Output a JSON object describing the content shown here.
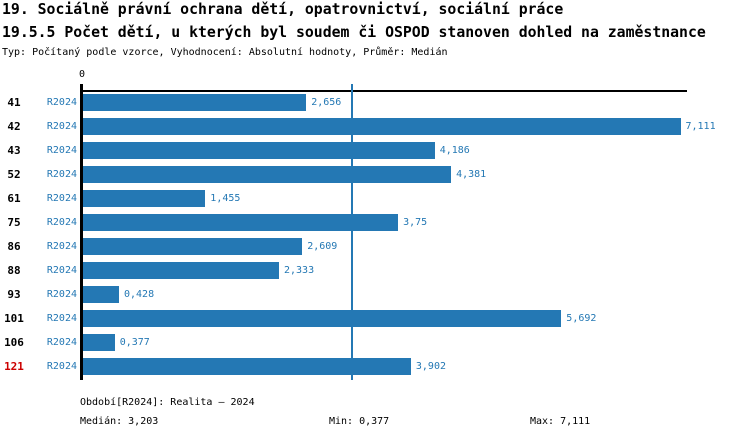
{
  "header": {
    "title": "19. Sociálně právní ochrana dětí, opatrovnictví, sociální práce",
    "subtitle": "19.5.5 Počet dětí, u kterých byl soudem či OSPOD stanoven dohled na zaměstnance",
    "meta": "Typ: Počítaný podle vzorce, Vyhodnocení: Absolutní hodnoty, Průměr: Medián"
  },
  "chart_data": {
    "type": "bar",
    "orientation": "horizontal",
    "title": "19.5.5 Počet dětí, u kterých byl soudem či OSPOD stanoven dohled na zaměstnance",
    "x_axis_zero_label": "0",
    "xlim": [
      0,
      7.2
    ],
    "grid": false,
    "legend": false,
    "series_label": "R2024",
    "categories": [
      "41",
      "42",
      "43",
      "52",
      "61",
      "75",
      "86",
      "88",
      "93",
      "101",
      "106",
      "121"
    ],
    "values": [
      2.656,
      7.111,
      4.186,
      4.381,
      1.455,
      3.75,
      2.609,
      2.333,
      0.428,
      5.692,
      0.377,
      3.902
    ],
    "value_labels": [
      "2,656",
      "7,111",
      "4,186",
      "4,381",
      "1,455",
      "3,75",
      "2,609",
      "2,333",
      "0,428",
      "5,692",
      "0,377",
      "3,902"
    ],
    "highlighted_categories": [
      "121"
    ],
    "median_value": 3.203,
    "median_line": true,
    "colors": {
      "bar": "#2478b4",
      "accent_text": "#2478b4",
      "highlight": "#cc0000",
      "axis": "#000000"
    }
  },
  "footer": {
    "period": "Období[R2024]: Realita – 2024",
    "median": "Medián: 3,203",
    "min": "Min: 0,377",
    "max": "Max: 7,111"
  }
}
